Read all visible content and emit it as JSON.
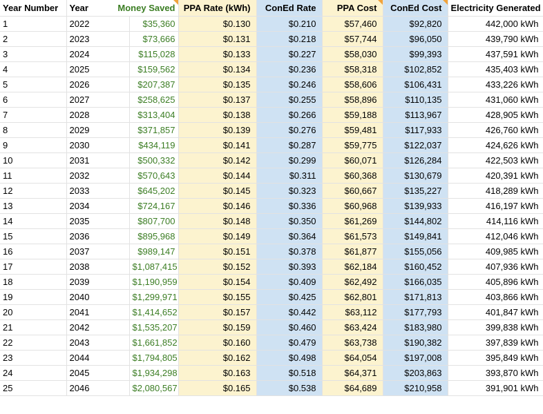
{
  "colors": {
    "column_yellow": "#fcf3cf",
    "column_blue": "#cfe2f3",
    "money_green": "#3b7d23",
    "note_orange": "#f1a33b",
    "gridline": "#e2e2e2"
  },
  "table": {
    "columns": [
      {
        "id": "year-number",
        "label": "Year Number",
        "bg": "white",
        "align": "left",
        "note": false
      },
      {
        "id": "year",
        "label": "Year",
        "bg": "white",
        "align": "left",
        "note": false
      },
      {
        "id": "money-saved",
        "label": "Money Saved",
        "bg": "white",
        "align": "right",
        "note": true,
        "header_green": true
      },
      {
        "id": "ppa-rate",
        "label": "PPA Rate (kWh)",
        "bg": "yellow",
        "align": "right",
        "note": false
      },
      {
        "id": "coned-rate",
        "label": "ConEd Rate",
        "bg": "blue",
        "align": "right",
        "note": false
      },
      {
        "id": "ppa-cost",
        "label": "PPA Cost",
        "bg": "yellow",
        "align": "right",
        "note": true
      },
      {
        "id": "coned-cost",
        "label": "ConEd Cost",
        "bg": "blue",
        "align": "right",
        "note": true
      },
      {
        "id": "electricity-generated",
        "label": "Electricity Generated",
        "bg": "white",
        "align": "right",
        "note": false
      }
    ],
    "rows": [
      [
        "1",
        "2022",
        "$35,360",
        "$0.130",
        "$0.210",
        "$57,460",
        "$92,820",
        "442,000 kWh"
      ],
      [
        "2",
        "2023",
        "$73,666",
        "$0.131",
        "$0.218",
        "$57,744",
        "$96,050",
        "439,790 kWh"
      ],
      [
        "3",
        "2024",
        "$115,028",
        "$0.133",
        "$0.227",
        "$58,030",
        "$99,393",
        "437,591 kWh"
      ],
      [
        "4",
        "2025",
        "$159,562",
        "$0.134",
        "$0.236",
        "$58,318",
        "$102,852",
        "435,403 kWh"
      ],
      [
        "5",
        "2026",
        "$207,387",
        "$0.135",
        "$0.246",
        "$58,606",
        "$106,431",
        "433,226 kWh"
      ],
      [
        "6",
        "2027",
        "$258,625",
        "$0.137",
        "$0.255",
        "$58,896",
        "$110,135",
        "431,060 kWh"
      ],
      [
        "7",
        "2028",
        "$313,404",
        "$0.138",
        "$0.266",
        "$59,188",
        "$113,967",
        "428,905 kWh"
      ],
      [
        "8",
        "2029",
        "$371,857",
        "$0.139",
        "$0.276",
        "$59,481",
        "$117,933",
        "426,760 kWh"
      ],
      [
        "9",
        "2030",
        "$434,119",
        "$0.141",
        "$0.287",
        "$59,775",
        "$122,037",
        "424,626 kWh"
      ],
      [
        "10",
        "2031",
        "$500,332",
        "$0.142",
        "$0.299",
        "$60,071",
        "$126,284",
        "422,503 kWh"
      ],
      [
        "11",
        "2032",
        "$570,643",
        "$0.144",
        "$0.311",
        "$60,368",
        "$130,679",
        "420,391 kWh"
      ],
      [
        "12",
        "2033",
        "$645,202",
        "$0.145",
        "$0.323",
        "$60,667",
        "$135,227",
        "418,289 kWh"
      ],
      [
        "13",
        "2034",
        "$724,167",
        "$0.146",
        "$0.336",
        "$60,968",
        "$139,933",
        "416,197 kWh"
      ],
      [
        "14",
        "2035",
        "$807,700",
        "$0.148",
        "$0.350",
        "$61,269",
        "$144,802",
        "414,116 kWh"
      ],
      [
        "15",
        "2036",
        "$895,968",
        "$0.149",
        "$0.364",
        "$61,573",
        "$149,841",
        "412,046 kWh"
      ],
      [
        "16",
        "2037",
        "$989,147",
        "$0.151",
        "$0.378",
        "$61,877",
        "$155,056",
        "409,985 kWh"
      ],
      [
        "17",
        "2038",
        "$1,087,415",
        "$0.152",
        "$0.393",
        "$62,184",
        "$160,452",
        "407,936 kWh"
      ],
      [
        "18",
        "2039",
        "$1,190,959",
        "$0.154",
        "$0.409",
        "$62,492",
        "$166,035",
        "405,896 kWh"
      ],
      [
        "19",
        "2040",
        "$1,299,971",
        "$0.155",
        "$0.425",
        "$62,801",
        "$171,813",
        "403,866 kWh"
      ],
      [
        "20",
        "2041",
        "$1,414,652",
        "$0.157",
        "$0.442",
        "$63,112",
        "$177,793",
        "401,847 kWh"
      ],
      [
        "21",
        "2042",
        "$1,535,207",
        "$0.159",
        "$0.460",
        "$63,424",
        "$183,980",
        "399,838 kWh"
      ],
      [
        "22",
        "2043",
        "$1,661,852",
        "$0.160",
        "$0.479",
        "$63,738",
        "$190,382",
        "397,839 kWh"
      ],
      [
        "23",
        "2044",
        "$1,794,805",
        "$0.162",
        "$0.498",
        "$64,054",
        "$197,008",
        "395,849 kWh"
      ],
      [
        "24",
        "2045",
        "$1,934,298",
        "$0.163",
        "$0.518",
        "$64,371",
        "$203,863",
        "393,870 kWh"
      ],
      [
        "25",
        "2046",
        "$2,080,567",
        "$0.165",
        "$0.538",
        "$64,689",
        "$210,958",
        "391,901 kWh"
      ]
    ]
  }
}
